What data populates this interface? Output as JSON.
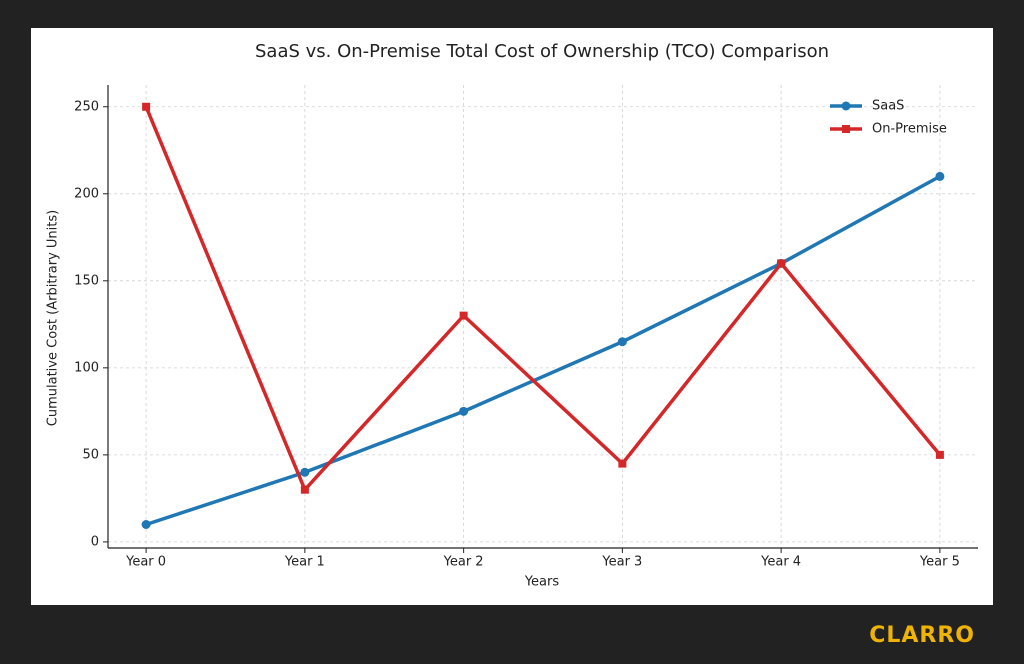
{
  "chart_data": {
    "type": "line",
    "title": "SaaS vs. On-Premise Total Cost of Ownership (TCO) Comparison",
    "x_label": "Years",
    "y_label": "Cumulative Cost (Arbitrary Units)",
    "categories": [
      "Year 0",
      "Year 1",
      "Year 2",
      "Year 3",
      "Year 4",
      "Year 5"
    ],
    "series": [
      {
        "name": "SaaS",
        "color": "#1f77b4",
        "marker": "circle",
        "values": [
          10,
          40,
          75,
          115,
          160,
          210
        ]
      },
      {
        "name": "On-Premise",
        "color": "#d62728",
        "marker": "square",
        "values": [
          250,
          30,
          130,
          45,
          160,
          50
        ]
      }
    ],
    "ylim": [
      -3.5,
      262.5
    ],
    "yticks": [
      0,
      50,
      100,
      150,
      200,
      250
    ],
    "grid": true,
    "legend": "upper right"
  },
  "brand": "CLARRO"
}
